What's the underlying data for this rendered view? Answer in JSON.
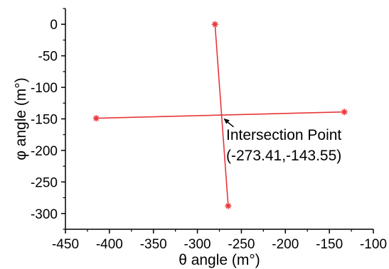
{
  "chart_data": {
    "type": "line",
    "xlabel": "θ angle (m°)",
    "ylabel": "φ angle (m°)",
    "xlim": [
      -450,
      -100
    ],
    "ylim": [
      -325,
      25
    ],
    "x_ticks": [
      -450,
      -400,
      -350,
      -300,
      -250,
      -200,
      -150,
      -100
    ],
    "x_tick_labels": [
      "-450",
      "-400",
      "-350",
      "-300",
      "-250",
      "-200",
      "-150",
      "-100"
    ],
    "y_ticks": [
      0,
      -50,
      -100,
      -150,
      -200,
      -250,
      -300
    ],
    "y_tick_labels": [
      "0",
      "-50",
      "-100",
      "-150",
      "-200",
      "-250",
      "-300"
    ],
    "grid": false,
    "line_color": "#e8363a",
    "series": [
      {
        "points": [
          [
            -280,
            0
          ],
          [
            -265,
            -288
          ]
        ],
        "marker": "asterisk"
      },
      {
        "points": [
          [
            -415,
            -149
          ],
          [
            -133,
            -139
          ]
        ],
        "marker": "asterisk"
      }
    ],
    "annotation": {
      "line1": "Intersection Point",
      "line2": "(-273.41,-143.55)",
      "target": [
        -273.41,
        -143.55
      ]
    }
  }
}
